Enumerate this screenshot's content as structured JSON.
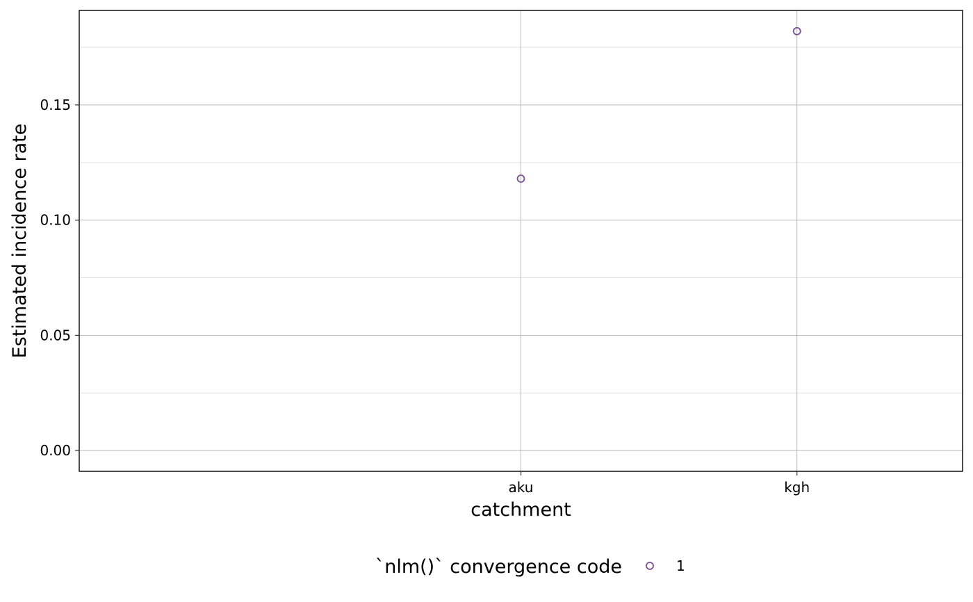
{
  "chart_data": {
    "type": "scatter",
    "xlabel": "catchment",
    "ylabel": "Estimated incidence rate",
    "categories": [
      "aku",
      "kgh"
    ],
    "ylim": [
      -0.009,
      0.191
    ],
    "y_ticks": [
      0.0,
      0.05,
      0.1,
      0.15
    ],
    "y_tick_labels": [
      "0.00",
      "0.05",
      "0.10",
      "0.15"
    ],
    "grid": true,
    "legend_position": "bottom",
    "legend": {
      "title": "`nlm()` convergence code",
      "entries": [
        {
          "label": "1",
          "color": "#7b4f93"
        }
      ]
    },
    "series": [
      {
        "values": [
          0.118,
          0.182
        ],
        "color": "#7b4f93",
        "marker": "open-circle"
      }
    ]
  }
}
